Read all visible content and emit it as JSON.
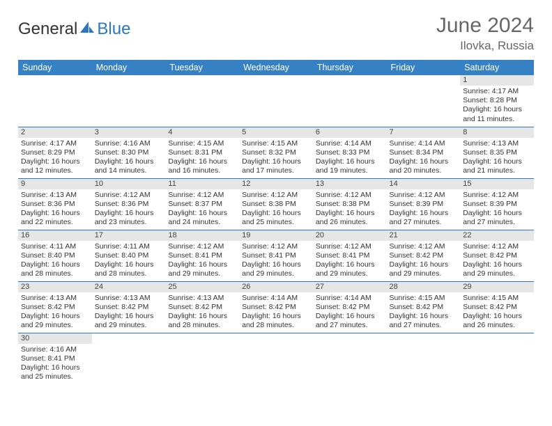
{
  "brand": {
    "part1": "General",
    "part2": "Blue"
  },
  "title": {
    "month": "June 2024",
    "location": "Ilovka, Russia"
  },
  "weekdays": [
    "Sunday",
    "Monday",
    "Tuesday",
    "Wednesday",
    "Thursday",
    "Friday",
    "Saturday"
  ],
  "colors": {
    "header_bg": "#3681c3",
    "header_text": "#ffffff",
    "daynum_bg": "#e6e6e6",
    "cell_border": "#2b77c0",
    "title_text": "#666666",
    "body_text": "#333333",
    "logo_blue": "#2b77c0"
  },
  "weeks": [
    [
      {
        "n": "",
        "lines": [
          "",
          "",
          "",
          ""
        ]
      },
      {
        "n": "",
        "lines": [
          "",
          "",
          "",
          ""
        ]
      },
      {
        "n": "",
        "lines": [
          "",
          "",
          "",
          ""
        ]
      },
      {
        "n": "",
        "lines": [
          "",
          "",
          "",
          ""
        ]
      },
      {
        "n": "",
        "lines": [
          "",
          "",
          "",
          ""
        ]
      },
      {
        "n": "",
        "lines": [
          "",
          "",
          "",
          ""
        ]
      },
      {
        "n": "1",
        "lines": [
          "Sunrise: 4:17 AM",
          "Sunset: 8:28 PM",
          "Daylight: 16 hours",
          "and 11 minutes."
        ]
      }
    ],
    [
      {
        "n": "2",
        "lines": [
          "Sunrise: 4:17 AM",
          "Sunset: 8:29 PM",
          "Daylight: 16 hours",
          "and 12 minutes."
        ]
      },
      {
        "n": "3",
        "lines": [
          "Sunrise: 4:16 AM",
          "Sunset: 8:30 PM",
          "Daylight: 16 hours",
          "and 14 minutes."
        ]
      },
      {
        "n": "4",
        "lines": [
          "Sunrise: 4:15 AM",
          "Sunset: 8:31 PM",
          "Daylight: 16 hours",
          "and 16 minutes."
        ]
      },
      {
        "n": "5",
        "lines": [
          "Sunrise: 4:15 AM",
          "Sunset: 8:32 PM",
          "Daylight: 16 hours",
          "and 17 minutes."
        ]
      },
      {
        "n": "6",
        "lines": [
          "Sunrise: 4:14 AM",
          "Sunset: 8:33 PM",
          "Daylight: 16 hours",
          "and 19 minutes."
        ]
      },
      {
        "n": "7",
        "lines": [
          "Sunrise: 4:14 AM",
          "Sunset: 8:34 PM",
          "Daylight: 16 hours",
          "and 20 minutes."
        ]
      },
      {
        "n": "8",
        "lines": [
          "Sunrise: 4:13 AM",
          "Sunset: 8:35 PM",
          "Daylight: 16 hours",
          "and 21 minutes."
        ]
      }
    ],
    [
      {
        "n": "9",
        "lines": [
          "Sunrise: 4:13 AM",
          "Sunset: 8:36 PM",
          "Daylight: 16 hours",
          "and 22 minutes."
        ]
      },
      {
        "n": "10",
        "lines": [
          "Sunrise: 4:12 AM",
          "Sunset: 8:36 PM",
          "Daylight: 16 hours",
          "and 23 minutes."
        ]
      },
      {
        "n": "11",
        "lines": [
          "Sunrise: 4:12 AM",
          "Sunset: 8:37 PM",
          "Daylight: 16 hours",
          "and 24 minutes."
        ]
      },
      {
        "n": "12",
        "lines": [
          "Sunrise: 4:12 AM",
          "Sunset: 8:38 PM",
          "Daylight: 16 hours",
          "and 25 minutes."
        ]
      },
      {
        "n": "13",
        "lines": [
          "Sunrise: 4:12 AM",
          "Sunset: 8:38 PM",
          "Daylight: 16 hours",
          "and 26 minutes."
        ]
      },
      {
        "n": "14",
        "lines": [
          "Sunrise: 4:12 AM",
          "Sunset: 8:39 PM",
          "Daylight: 16 hours",
          "and 27 minutes."
        ]
      },
      {
        "n": "15",
        "lines": [
          "Sunrise: 4:12 AM",
          "Sunset: 8:39 PM",
          "Daylight: 16 hours",
          "and 27 minutes."
        ]
      }
    ],
    [
      {
        "n": "16",
        "lines": [
          "Sunrise: 4:11 AM",
          "Sunset: 8:40 PM",
          "Daylight: 16 hours",
          "and 28 minutes."
        ]
      },
      {
        "n": "17",
        "lines": [
          "Sunrise: 4:11 AM",
          "Sunset: 8:40 PM",
          "Daylight: 16 hours",
          "and 28 minutes."
        ]
      },
      {
        "n": "18",
        "lines": [
          "Sunrise: 4:12 AM",
          "Sunset: 8:41 PM",
          "Daylight: 16 hours",
          "and 29 minutes."
        ]
      },
      {
        "n": "19",
        "lines": [
          "Sunrise: 4:12 AM",
          "Sunset: 8:41 PM",
          "Daylight: 16 hours",
          "and 29 minutes."
        ]
      },
      {
        "n": "20",
        "lines": [
          "Sunrise: 4:12 AM",
          "Sunset: 8:41 PM",
          "Daylight: 16 hours",
          "and 29 minutes."
        ]
      },
      {
        "n": "21",
        "lines": [
          "Sunrise: 4:12 AM",
          "Sunset: 8:42 PM",
          "Daylight: 16 hours",
          "and 29 minutes."
        ]
      },
      {
        "n": "22",
        "lines": [
          "Sunrise: 4:12 AM",
          "Sunset: 8:42 PM",
          "Daylight: 16 hours",
          "and 29 minutes."
        ]
      }
    ],
    [
      {
        "n": "23",
        "lines": [
          "Sunrise: 4:13 AM",
          "Sunset: 8:42 PM",
          "Daylight: 16 hours",
          "and 29 minutes."
        ]
      },
      {
        "n": "24",
        "lines": [
          "Sunrise: 4:13 AM",
          "Sunset: 8:42 PM",
          "Daylight: 16 hours",
          "and 29 minutes."
        ]
      },
      {
        "n": "25",
        "lines": [
          "Sunrise: 4:13 AM",
          "Sunset: 8:42 PM",
          "Daylight: 16 hours",
          "and 28 minutes."
        ]
      },
      {
        "n": "26",
        "lines": [
          "Sunrise: 4:14 AM",
          "Sunset: 8:42 PM",
          "Daylight: 16 hours",
          "and 28 minutes."
        ]
      },
      {
        "n": "27",
        "lines": [
          "Sunrise: 4:14 AM",
          "Sunset: 8:42 PM",
          "Daylight: 16 hours",
          "and 27 minutes."
        ]
      },
      {
        "n": "28",
        "lines": [
          "Sunrise: 4:15 AM",
          "Sunset: 8:42 PM",
          "Daylight: 16 hours",
          "and 27 minutes."
        ]
      },
      {
        "n": "29",
        "lines": [
          "Sunrise: 4:15 AM",
          "Sunset: 8:42 PM",
          "Daylight: 16 hours",
          "and 26 minutes."
        ]
      }
    ],
    [
      {
        "n": "30",
        "lines": [
          "Sunrise: 4:16 AM",
          "Sunset: 8:41 PM",
          "Daylight: 16 hours",
          "and 25 minutes."
        ]
      },
      {
        "n": "",
        "lines": [
          "",
          "",
          "",
          ""
        ]
      },
      {
        "n": "",
        "lines": [
          "",
          "",
          "",
          ""
        ]
      },
      {
        "n": "",
        "lines": [
          "",
          "",
          "",
          ""
        ]
      },
      {
        "n": "",
        "lines": [
          "",
          "",
          "",
          ""
        ]
      },
      {
        "n": "",
        "lines": [
          "",
          "",
          "",
          ""
        ]
      },
      {
        "n": "",
        "lines": [
          "",
          "",
          "",
          ""
        ]
      }
    ]
  ]
}
